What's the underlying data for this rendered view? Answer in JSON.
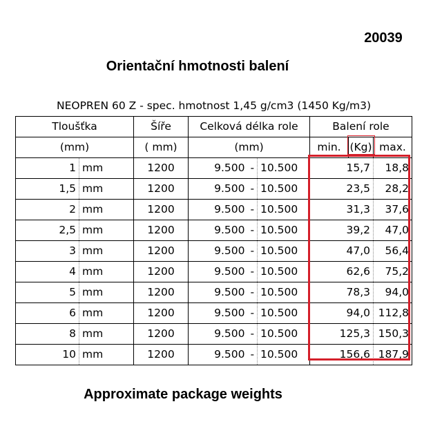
{
  "doc_code": "20039",
  "title_cz": "Orientační hmotnosti balení",
  "spec_line": "NEOPREN 60 Z - spec. hmotnost 1,45 g/cm3 (1450 Kg/m3)",
  "table": {
    "header1": {
      "thickness": "Tloušťka",
      "width": "Šíře",
      "length": "Celková délka role",
      "package": "Balení role"
    },
    "header2": {
      "thickness_unit": "(mm)",
      "width_unit": "( mm)",
      "length_unit": "(mm)",
      "min": "min.",
      "kg": "(Kg)",
      "max": "max."
    },
    "rows": [
      {
        "thick": "1",
        "unit": "mm",
        "width": "1200",
        "len_min": "9.500",
        "sep": "-",
        "len_max": "10.500",
        "wmin": "15,7",
        "wmax": "18,8"
      },
      {
        "thick": "1,5",
        "unit": "mm",
        "width": "1200",
        "len_min": "9.500",
        "sep": "-",
        "len_max": "10.500",
        "wmin": "23,5",
        "wmax": "28,2"
      },
      {
        "thick": "2",
        "unit": "mm",
        "width": "1200",
        "len_min": "9.500",
        "sep": "-",
        "len_max": "10.500",
        "wmin": "31,3",
        "wmax": "37,6"
      },
      {
        "thick": "2,5",
        "unit": "mm",
        "width": "1200",
        "len_min": "9.500",
        "sep": "-",
        "len_max": "10.500",
        "wmin": "39,2",
        "wmax": "47,0"
      },
      {
        "thick": "3",
        "unit": "mm",
        "width": "1200",
        "len_min": "9.500",
        "sep": "-",
        "len_max": "10.500",
        "wmin": "47,0",
        "wmax": "56,4"
      },
      {
        "thick": "4",
        "unit": "mm",
        "width": "1200",
        "len_min": "9.500",
        "sep": "-",
        "len_max": "10.500",
        "wmin": "62,6",
        "wmax": "75,2"
      },
      {
        "thick": "5",
        "unit": "mm",
        "width": "1200",
        "len_min": "9.500",
        "sep": "-",
        "len_max": "10.500",
        "wmin": "78,3",
        "wmax": "94,0"
      },
      {
        "thick": "6",
        "unit": "mm",
        "width": "1200",
        "len_min": "9.500",
        "sep": "-",
        "len_max": "10.500",
        "wmin": "94,0",
        "wmax": "112,8"
      },
      {
        "thick": "8",
        "unit": "mm",
        "width": "1200",
        "len_min": "9.500",
        "sep": "-",
        "len_max": "10.500",
        "wmin": "125,3",
        "wmax": "150,3"
      },
      {
        "thick": "10",
        "unit": "mm",
        "width": "1200",
        "len_min": "9.500",
        "sep": "-",
        "len_max": "10.500",
        "wmin": "156,6",
        "wmax": "187,9"
      }
    ]
  },
  "title_en": "Approximate package weights",
  "colors": {
    "highlight": "#d41f2a"
  }
}
